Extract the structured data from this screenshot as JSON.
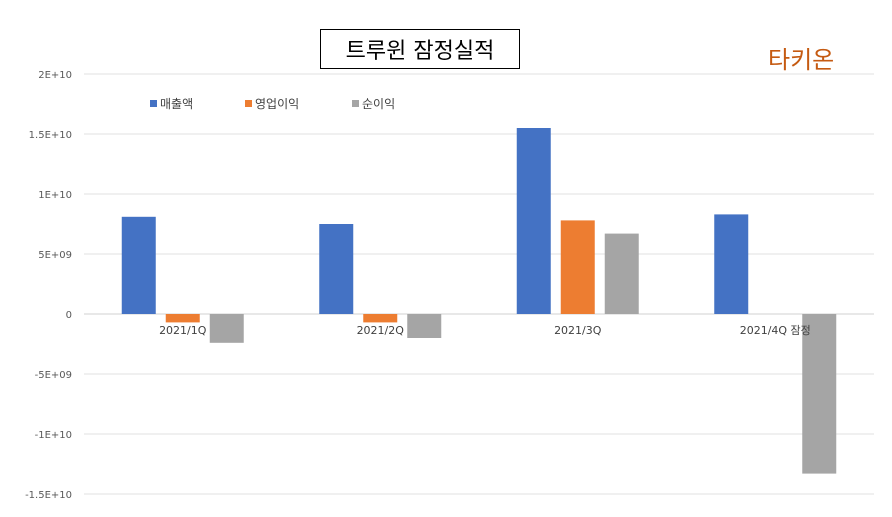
{
  "chart_data": {
    "type": "bar",
    "title": "트루윈 잠정실적",
    "categories": [
      "2021/1Q",
      "2021/2Q",
      "2021/3Q",
      "2021/4Q 잠정"
    ],
    "series": [
      {
        "name": "매출액",
        "color": "#4472c4",
        "values": [
          8100000000,
          7500000000,
          15500000000,
          8300000000
        ]
      },
      {
        "name": "영업이익",
        "color": "#ed7d31",
        "values": [
          -700000000,
          -700000000,
          7800000000,
          0
        ]
      },
      {
        "name": "순이익",
        "color": "#a5a5a5",
        "values": [
          -2400000000,
          -2000000000,
          6700000000,
          -13300000000
        ]
      }
    ],
    "ylim": [
      -15000000000,
      20000000000
    ],
    "yticks": [
      20000000000,
      15000000000,
      10000000000,
      5000000000,
      0,
      -5000000000,
      -10000000000,
      -15000000000
    ],
    "ytick_labels": [
      "2E+10",
      "1.5E+10",
      "1E+10",
      "5E+09",
      "0",
      "-5E+09",
      "-1E+10",
      "-1.5E+10"
    ],
    "legend": "top-left",
    "grid": true
  },
  "watermark": "타키온"
}
